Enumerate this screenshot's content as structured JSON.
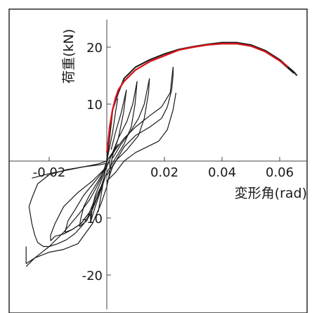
{
  "chart_data": {
    "type": "line",
    "title": "",
    "xlabel": "変形角(rad)",
    "ylabel": "荷重(kN)",
    "xlim": [
      -0.035,
      0.068
    ],
    "ylim": [
      -25,
      24
    ],
    "x_ticks": [
      -0.02,
      0.02,
      0.04,
      0.06
    ],
    "x_tick_labels": [
      "-0.02",
      "0.02",
      "0.04",
      "0.06"
    ],
    "y_ticks": [
      20,
      10,
      -10,
      -20
    ],
    "y_tick_labels": [
      "20",
      "10",
      "-10",
      "-20"
    ],
    "grid": false,
    "legend": "none",
    "colors": {
      "hysteresis": "#1a1a1a",
      "envelope": "#e0141a",
      "frame": "#2a2a2a"
    },
    "series": [
      {
        "x": [
          0.0,
          0.0005,
          0.001,
          0.002,
          0.003,
          0.004,
          0.006,
          0.008,
          0.01,
          0.015,
          0.02,
          0.025,
          0.03,
          0.035,
          0.04,
          0.045,
          0.05,
          0.055,
          0.06,
          0.065
        ],
        "y": [
          1.5,
          3.5,
          6.0,
          9.0,
          11.0,
          12.5,
          14.0,
          15.0,
          16.0,
          17.5,
          18.5,
          19.5,
          20.0,
          20.4,
          20.6,
          20.6,
          20.2,
          19.2,
          17.6,
          15.4
        ]
      },
      {
        "x": [
          0.0,
          0.002,
          0.004,
          0.006,
          0.008,
          0.01,
          0.015,
          0.02,
          0.025,
          0.03,
          0.035,
          0.04,
          0.045,
          0.05,
          0.055,
          0.06,
          0.065,
          0.066
        ],
        "y": [
          0.0,
          9.0,
          12.0,
          14.5,
          15.5,
          16.5,
          17.8,
          18.8,
          19.6,
          20.1,
          20.5,
          20.8,
          20.8,
          20.4,
          19.4,
          17.8,
          15.6,
          15.0
        ]
      },
      {
        "x": [
          0.0,
          -0.002,
          -0.004,
          -0.006,
          -0.008,
          -0.01,
          -0.015,
          -0.02,
          -0.025,
          -0.028,
          -0.028
        ],
        "y": [
          0.0,
          -3.0,
          -5.0,
          -6.8,
          -8.2,
          -9.5,
          -12.5,
          -15.0,
          -17.0,
          -18.0,
          -15.0
        ]
      },
      {
        "x": [
          -0.028,
          -0.025,
          -0.02,
          -0.015,
          -0.01,
          -0.005,
          -0.002,
          0.0,
          0.001,
          0.002
        ],
        "y": [
          -18.5,
          -17.0,
          -16.0,
          -15.5,
          -14.5,
          -11.0,
          -7.5,
          -4.5,
          -2.0,
          1.0
        ]
      },
      {
        "x": [
          0.001,
          0.001,
          0.0,
          -0.003,
          -0.008,
          -0.014,
          -0.02,
          -0.024,
          -0.026,
          -0.027
        ],
        "y": [
          -1.0,
          -0.2,
          -0.4,
          -0.7,
          -1.0,
          -1.5,
          -2.4,
          -4.0,
          -6.5,
          -8.0
        ]
      },
      {
        "x": [
          -0.027,
          -0.026,
          -0.025,
          -0.024,
          -0.022,
          -0.02,
          -0.017,
          -0.014,
          -0.011,
          -0.008,
          -0.005,
          -0.003,
          -0.002
        ],
        "y": [
          -8.0,
          -11.0,
          -13.0,
          -14.3,
          -15.0,
          -15.0,
          -14.5,
          -13.8,
          -12.7,
          -11.0,
          -8.5,
          -6.0,
          -4.5
        ]
      },
      {
        "x": [
          0.0,
          0.002,
          0.006,
          0.01,
          0.015,
          0.019,
          0.021,
          0.0225,
          0.023,
          0.023
        ],
        "y": [
          -4.0,
          -1.0,
          2.5,
          4.5,
          6.0,
          7.5,
          9.5,
          12.5,
          15.0,
          16.5
        ]
      },
      {
        "x": [
          0.023,
          0.022,
          0.019,
          0.015,
          0.01,
          0.006,
          0.003,
          0.001
        ],
        "y": [
          16.5,
          12.0,
          9.5,
          8.0,
          6.0,
          4.0,
          2.0,
          0.5
        ]
      },
      {
        "x": [
          0.0,
          0.003,
          0.007,
          0.011,
          0.013,
          0.0145,
          0.0148
        ],
        "y": [
          -2.5,
          0.0,
          2.0,
          4.5,
          7.5,
          12.0,
          14.5
        ]
      },
      {
        "x": [
          0.0148,
          0.013,
          0.011,
          0.008,
          0.005,
          0.002
        ],
        "y": [
          14.5,
          10.0,
          7.5,
          5.0,
          3.0,
          0.5
        ]
      },
      {
        "x": [
          0.0,
          0.003,
          0.006,
          0.0085,
          0.0098,
          0.0105
        ],
        "y": [
          -2.0,
          0.5,
          3.0,
          6.0,
          10.0,
          14.0
        ]
      },
      {
        "x": [
          0.0105,
          0.009,
          0.007,
          0.004,
          0.002
        ],
        "y": [
          14.0,
          10.0,
          7.0,
          4.0,
          1.0
        ]
      },
      {
        "x": [
          0.0,
          0.002,
          0.004,
          0.0058,
          0.0068
        ],
        "y": [
          -1.0,
          1.5,
          4.0,
          8.5,
          12.5
        ]
      },
      {
        "x": [
          0.0068,
          0.005,
          0.003,
          0.0015
        ],
        "y": [
          12.5,
          8.5,
          5.0,
          2.0
        ]
      },
      {
        "x": [
          0.0,
          0.001,
          0.002,
          0.003,
          0.0038
        ],
        "y": [
          0.0,
          2.5,
          5.0,
          8.5,
          11.0
        ]
      },
      {
        "x": [
          0.0,
          -0.005,
          -0.01,
          -0.015,
          -0.018,
          -0.0195,
          -0.0195
        ],
        "y": [
          -1.0,
          -3.5,
          -5.5,
          -8.0,
          -11.0,
          -13.0,
          -14.0
        ]
      },
      {
        "x": [
          -0.0195,
          -0.018,
          -0.015,
          -0.012,
          -0.009,
          -0.006,
          -0.004,
          -0.002
        ],
        "y": [
          -14.0,
          -13.2,
          -12.8,
          -12.0,
          -11.0,
          -9.0,
          -6.5,
          -4.5
        ]
      },
      {
        "x": [
          0.0,
          -0.004,
          -0.008,
          -0.011,
          -0.0135,
          -0.0145
        ],
        "y": [
          -1.0,
          -3.5,
          -6.0,
          -8.5,
          -10.5,
          -12.5
        ]
      },
      {
        "x": [
          -0.0145,
          -0.012,
          -0.009,
          -0.006,
          -0.003,
          -0.001
        ],
        "y": [
          -12.5,
          -12.0,
          -11.0,
          -9.0,
          -6.0,
          -3.5
        ]
      },
      {
        "x": [
          0.0,
          -0.003,
          -0.006,
          -0.008,
          -0.009,
          -0.0095
        ],
        "y": [
          -1.0,
          -3.5,
          -6.0,
          -8.0,
          -10.0,
          -11.5
        ]
      },
      {
        "x": [
          -0.0095,
          -0.007,
          -0.005,
          -0.003,
          -0.001
        ],
        "y": [
          -11.5,
          -10.5,
          -8.5,
          -6.0,
          -3.0
        ]
      },
      {
        "x": [
          0.0,
          -0.002,
          -0.004,
          -0.005,
          -0.0055
        ],
        "y": [
          -1.0,
          -3.5,
          -6.0,
          -8.0,
          -10.5
        ]
      },
      {
        "x": [
          -0.0055,
          -0.004,
          -0.002,
          0.0
        ],
        "y": [
          -10.5,
          -8.0,
          -5.0,
          -2.0
        ]
      },
      {
        "x": [
          0.0,
          -0.001,
          -0.002,
          -0.003
        ],
        "y": [
          0.0,
          -3.0,
          -6.0,
          -9.0
        ]
      },
      {
        "x": [
          -0.026,
          -0.02,
          -0.014,
          -0.008,
          -0.003,
          0.0,
          0.002,
          0.004
        ],
        "y": [
          -3.0,
          -2.2,
          -1.6,
          -1.0,
          -0.5,
          0.0,
          1.5,
          3.0
        ]
      },
      {
        "x": [
          0.0,
          0.003,
          0.006,
          0.01,
          0.014,
          0.018,
          0.021,
          0.023,
          0.024
        ],
        "y": [
          -3.5,
          -2.0,
          0.0,
          1.5,
          2.5,
          3.5,
          5.5,
          9.0,
          12.0
        ]
      }
    ],
    "envelope": {
      "x": [
        0.0,
        0.0005,
        0.001,
        0.002,
        0.003,
        0.004,
        0.006,
        0.008,
        0.01,
        0.015,
        0.02,
        0.025,
        0.03,
        0.035,
        0.04,
        0.045,
        0.05,
        0.055,
        0.06,
        0.063
      ],
      "y": [
        1.5,
        3.5,
        6.0,
        9.0,
        11.0,
        12.5,
        14.0,
        15.0,
        16.0,
        17.5,
        18.5,
        19.5,
        20.0,
        20.4,
        20.6,
        20.6,
        20.2,
        19.2,
        17.6,
        16.5
      ]
    }
  }
}
